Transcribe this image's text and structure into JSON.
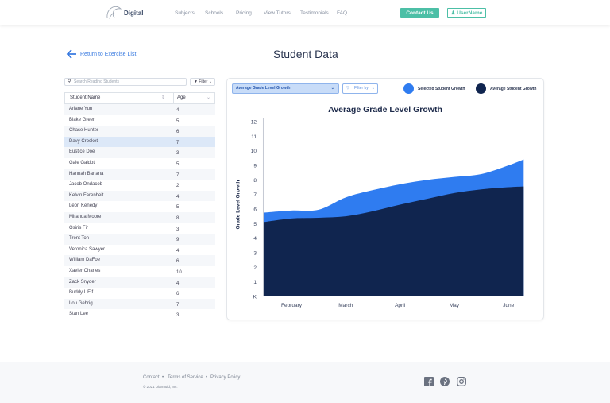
{
  "header": {
    "brand": "Digital",
    "nav": [
      "Subjects",
      "Schools",
      "Pricing",
      "View Tutors",
      "Testimonials",
      "FAQ"
    ],
    "contact": "Contact Us",
    "user": "UserName"
  },
  "back_link": "Return to Exercise List",
  "page_title": "Student Data",
  "search": {
    "placeholder": "Search Reading Students"
  },
  "filter_label": "Filter",
  "table": {
    "headers": [
      "Student Name",
      "Age"
    ],
    "rows": [
      [
        "Ariane Yun",
        "4"
      ],
      [
        "Blake Green",
        "5"
      ],
      [
        "Chase Hunter",
        "6"
      ],
      [
        "Davy Crocket",
        "7"
      ],
      [
        "Eustice Doe",
        "3"
      ],
      [
        "Gale Galdot",
        "5"
      ],
      [
        "Hannah Banana",
        "7"
      ],
      [
        "Jacob Ondacob",
        "2"
      ],
      [
        "Kelvin Farenheit",
        "4"
      ],
      [
        "Leon Kenedy",
        "5"
      ],
      [
        "Miranda Moore",
        "8"
      ],
      [
        "Osiris Fir",
        "3"
      ],
      [
        "Trent Ton",
        "9"
      ],
      [
        "Veronica Sawyer",
        "4"
      ],
      [
        "William DaFoe",
        "6"
      ],
      [
        "Xavier Charles",
        "10"
      ],
      [
        "Zack Snyder",
        "4"
      ],
      [
        "Buddy L'Elf",
        "6"
      ],
      [
        "Lou Gehrig",
        "7"
      ],
      [
        "Stan Lee",
        "3"
      ]
    ],
    "selected_row": 3
  },
  "chart_controls": {
    "metric": "Average Grade Level Growth",
    "filter_by": "Filter by"
  },
  "colors": {
    "selected": "#2f7cf0",
    "average": "#10254f",
    "accent": "#4cbfa6"
  },
  "chart_data": {
    "type": "area",
    "title": "Average Grade Level Growth",
    "xlabel": "",
    "ylabel": "Grade Level Growth",
    "categories": [
      "February",
      "March",
      "April",
      "May",
      "June"
    ],
    "yticks": [
      "K",
      "1",
      "2",
      "3",
      "4",
      "5",
      "6",
      "7",
      "8",
      "9",
      "10",
      "11",
      "12"
    ],
    "ylim": [
      0,
      12
    ],
    "x": [
      -0.52,
      0,
      0.5,
      1,
      1.5,
      2,
      2.5,
      3,
      3.5,
      4,
      4.28
    ],
    "series": [
      {
        "name": "Selected Student Growth",
        "values": [
          5.75,
          5.9,
          5.95,
          6.8,
          7.3,
          7.7,
          8.0,
          8.2,
          8.4,
          9.0,
          9.4
        ]
      },
      {
        "name": "Average Student Growth",
        "values": [
          5.1,
          5.35,
          5.4,
          5.5,
          5.85,
          6.3,
          6.7,
          7.1,
          7.35,
          7.5,
          7.55
        ]
      }
    ],
    "legend": "top-right"
  },
  "footer": {
    "links": [
      "Contact",
      "Terms of Service",
      "Privacy Policy"
    ],
    "copyright": "© 2021 Diarmuid, Inc."
  }
}
